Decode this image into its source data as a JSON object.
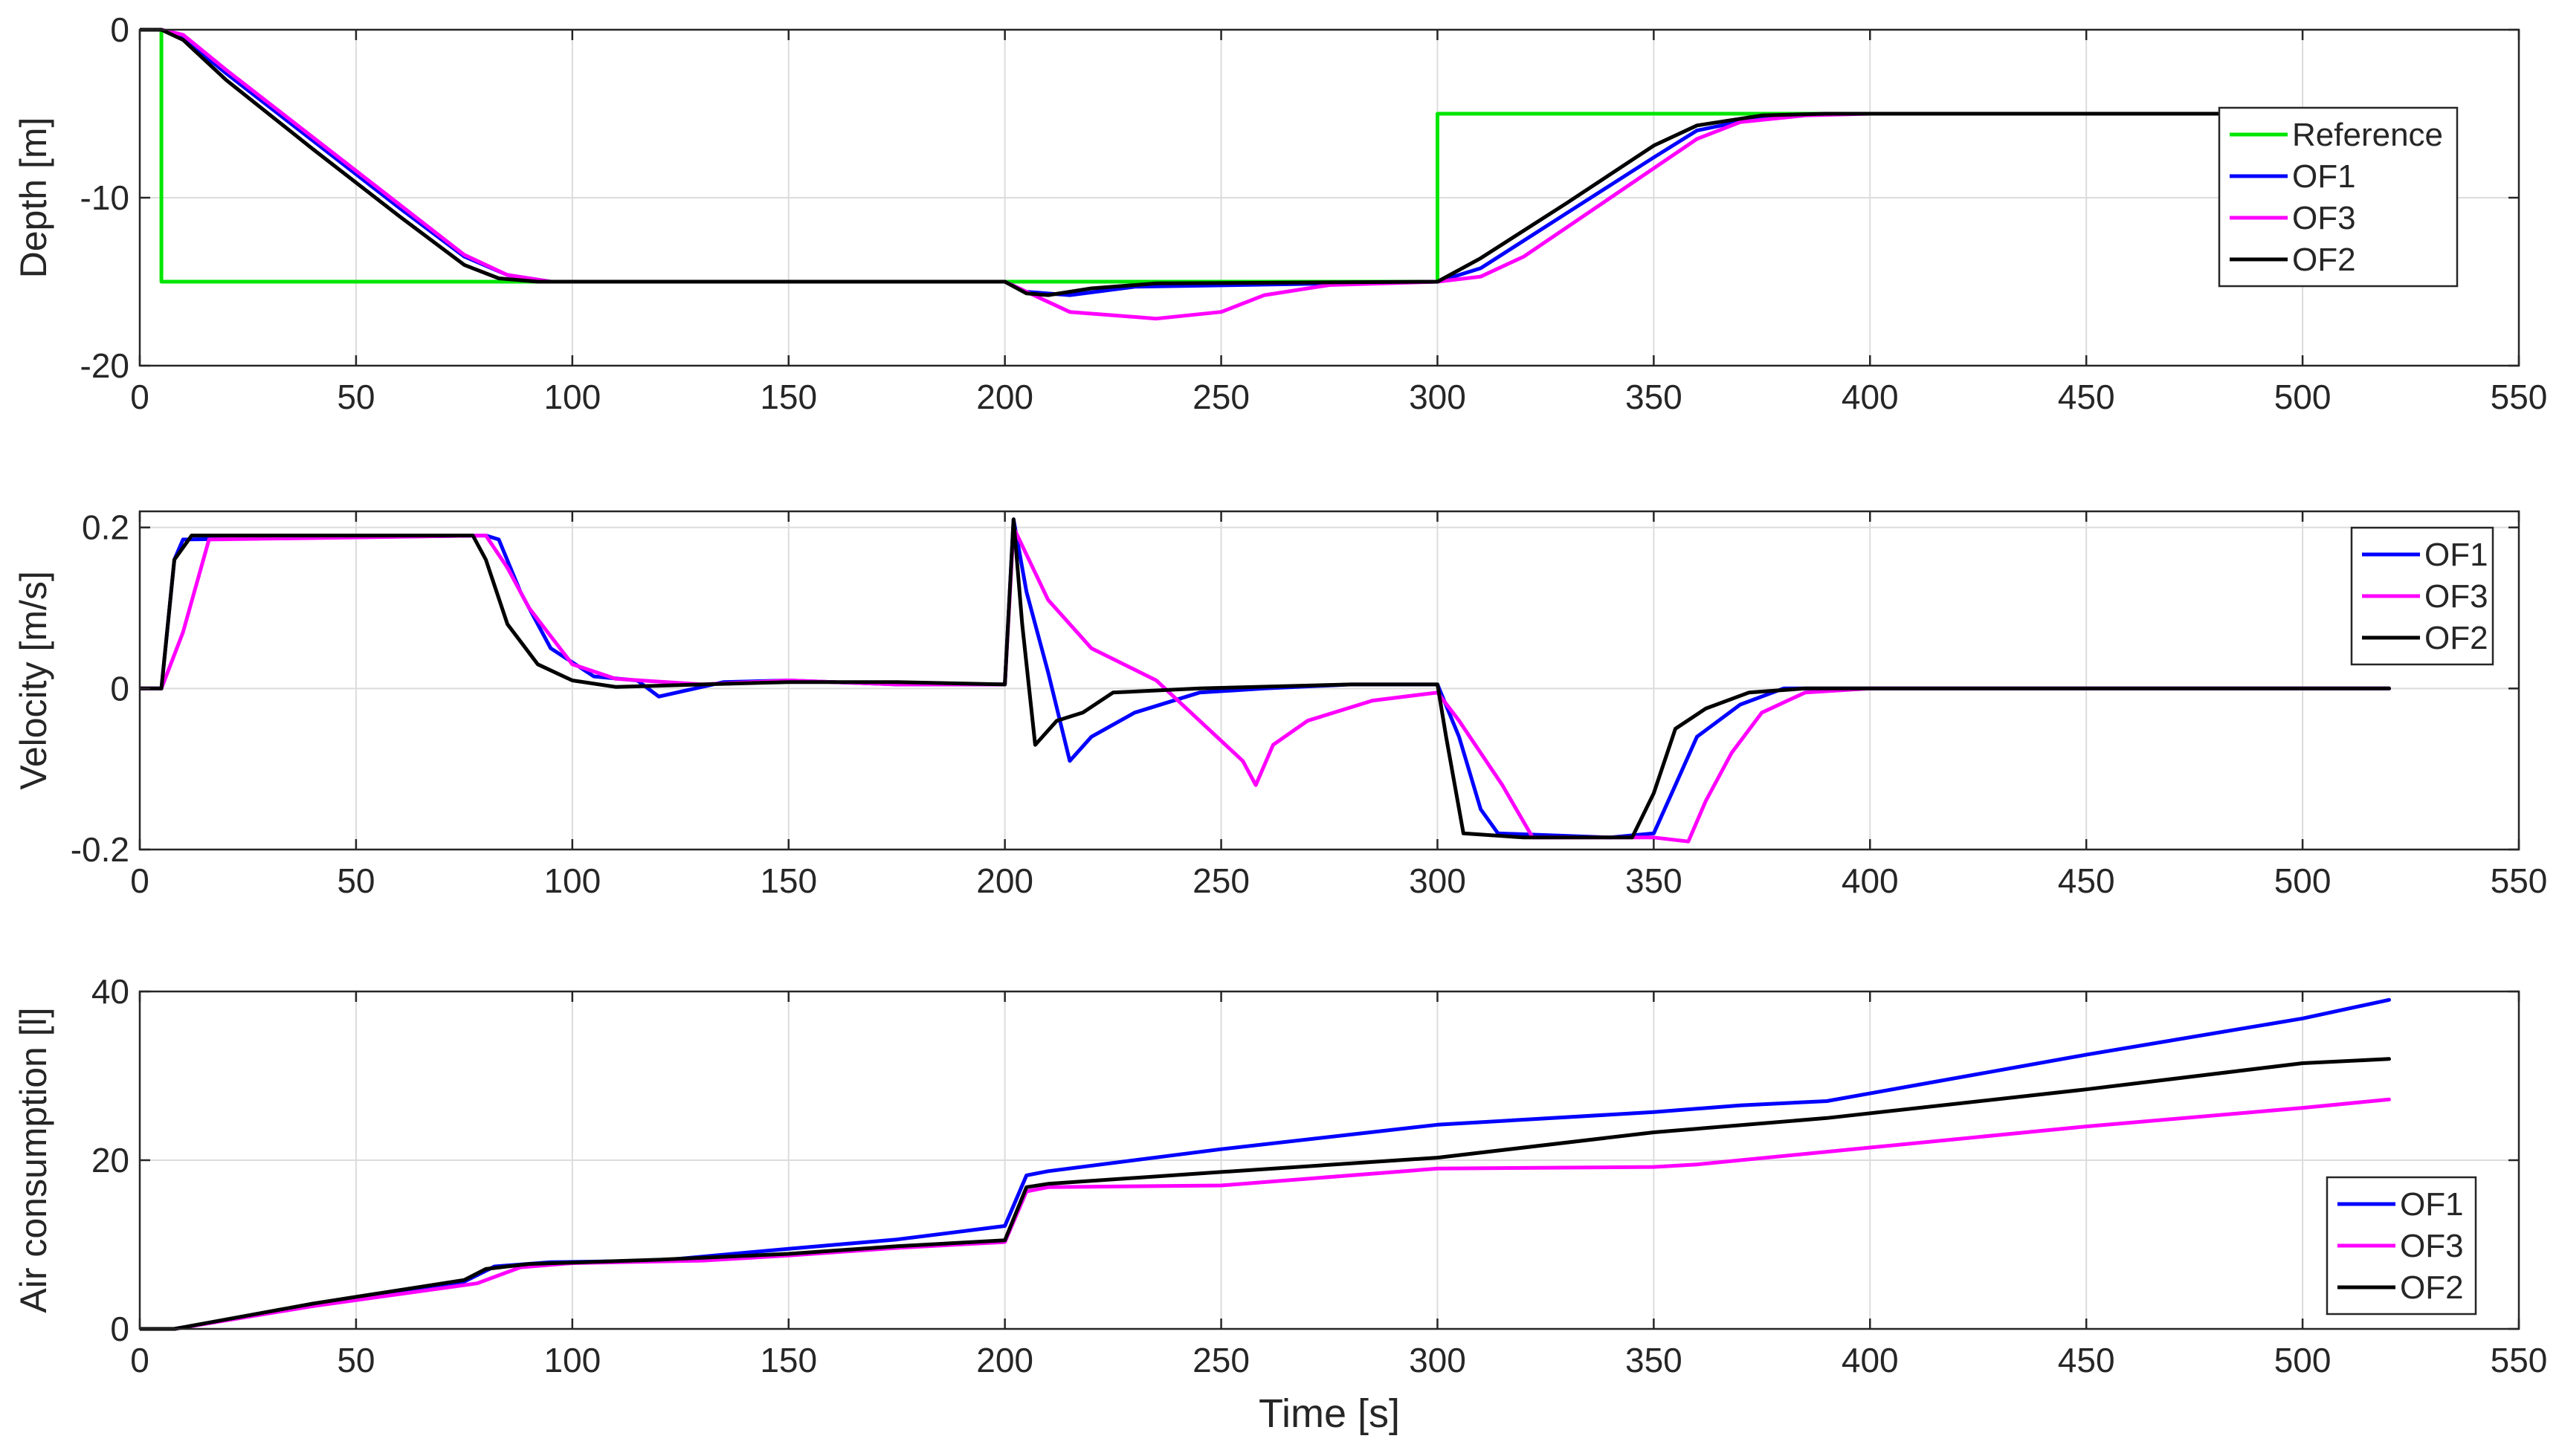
{
  "chart_data": [
    {
      "type": "line",
      "ylabel": "Depth [m]",
      "xlabel": "",
      "xlim": [
        0,
        550
      ],
      "ylim": [
        -20,
        0
      ],
      "xticks": [
        0,
        50,
        100,
        150,
        200,
        250,
        300,
        350,
        400,
        450,
        500,
        550
      ],
      "yticks": [
        0,
        -10,
        -20
      ],
      "grid": true,
      "legend_position": "right",
      "series": [
        {
          "name": "Reference",
          "color": "#00e600",
          "points": [
            [
              0,
              0
            ],
            [
              5,
              0
            ],
            [
              5,
              -15
            ],
            [
              300,
              -15
            ],
            [
              300,
              -5
            ],
            [
              520,
              -5
            ]
          ]
        },
        {
          "name": "OF1",
          "color": "#0000ff",
          "points": [
            [
              0,
              0
            ],
            [
              5,
              0
            ],
            [
              10,
              -0.5
            ],
            [
              20,
              -2.6
            ],
            [
              40,
              -6.6
            ],
            [
              60,
              -10.6
            ],
            [
              75,
              -13.5
            ],
            [
              85,
              -14.6
            ],
            [
              95,
              -15
            ],
            [
              200,
              -15
            ],
            [
              205,
              -15.6
            ],
            [
              215,
              -15.8
            ],
            [
              230,
              -15.3
            ],
            [
              300,
              -15
            ],
            [
              310,
              -14.2
            ],
            [
              330,
              -10.9
            ],
            [
              350,
              -7.6
            ],
            [
              360,
              -6
            ],
            [
              375,
              -5.2
            ],
            [
              390,
              -5
            ],
            [
              520,
              -5
            ]
          ]
        },
        {
          "name": "OF3",
          "color": "#ff00ff",
          "points": [
            [
              0,
              0
            ],
            [
              5,
              0
            ],
            [
              10,
              -0.3
            ],
            [
              20,
              -2.4
            ],
            [
              40,
              -6.4
            ],
            [
              60,
              -10.4
            ],
            [
              75,
              -13.4
            ],
            [
              85,
              -14.6
            ],
            [
              95,
              -15
            ],
            [
              200,
              -15
            ],
            [
              205,
              -15.6
            ],
            [
              215,
              -16.8
            ],
            [
              235,
              -17.2
            ],
            [
              250,
              -16.8
            ],
            [
              260,
              -15.8
            ],
            [
              275,
              -15.2
            ],
            [
              300,
              -15
            ],
            [
              310,
              -14.7
            ],
            [
              320,
              -13.5
            ],
            [
              340,
              -10
            ],
            [
              360,
              -6.5
            ],
            [
              370,
              -5.5
            ],
            [
              385,
              -5.1
            ],
            [
              400,
              -5
            ],
            [
              520,
              -5
            ]
          ]
        },
        {
          "name": "OF2",
          "color": "#000000",
          "points": [
            [
              0,
              0
            ],
            [
              5,
              0
            ],
            [
              10,
              -0.6
            ],
            [
              20,
              -3
            ],
            [
              40,
              -7.1
            ],
            [
              60,
              -11.1
            ],
            [
              75,
              -14
            ],
            [
              83,
              -14.8
            ],
            [
              92,
              -15
            ],
            [
              200,
              -15
            ],
            [
              205,
              -15.7
            ],
            [
              210,
              -15.8
            ],
            [
              220,
              -15.4
            ],
            [
              235,
              -15.1
            ],
            [
              300,
              -15
            ],
            [
              310,
              -13.6
            ],
            [
              330,
              -10.3
            ],
            [
              350,
              -6.9
            ],
            [
              360,
              -5.7
            ],
            [
              375,
              -5.1
            ],
            [
              390,
              -5
            ],
            [
              520,
              -5
            ]
          ]
        }
      ]
    },
    {
      "type": "line",
      "ylabel": "Velocity [m/s]",
      "xlabel": "",
      "xlim": [
        0,
        550
      ],
      "ylim": [
        -0.2,
        0.22
      ],
      "xticks": [
        0,
        50,
        100,
        150,
        200,
        250,
        300,
        350,
        400,
        450,
        500,
        550
      ],
      "yticks": [
        0.2,
        0,
        -0.2
      ],
      "grid": true,
      "legend_position": "right",
      "series": [
        {
          "name": "OF1",
          "color": "#0000ff",
          "points": [
            [
              0,
              0
            ],
            [
              5,
              0
            ],
            [
              8,
              0.16
            ],
            [
              10,
              0.185
            ],
            [
              80,
              0.19
            ],
            [
              83,
              0.185
            ],
            [
              88,
              0.12
            ],
            [
              95,
              0.05
            ],
            [
              105,
              0.015
            ],
            [
              115,
              0.01
            ],
            [
              120,
              -0.01
            ],
            [
              135,
              0.008
            ],
            [
              150,
              0.01
            ],
            [
              175,
              0.005
            ],
            [
              200,
              0.005
            ],
            [
              202,
              0.21
            ],
            [
              205,
              0.12
            ],
            [
              210,
              0.02
            ],
            [
              215,
              -0.09
            ],
            [
              220,
              -0.06
            ],
            [
              230,
              -0.03
            ],
            [
              245,
              -0.005
            ],
            [
              260,
              0
            ],
            [
              280,
              0.005
            ],
            [
              300,
              0.005
            ],
            [
              305,
              -0.06
            ],
            [
              310,
              -0.15
            ],
            [
              314,
              -0.18
            ],
            [
              340,
              -0.185
            ],
            [
              350,
              -0.18
            ],
            [
              355,
              -0.12
            ],
            [
              360,
              -0.06
            ],
            [
              370,
              -0.02
            ],
            [
              380,
              0
            ],
            [
              400,
              0
            ],
            [
              450,
              0
            ],
            [
              520,
              0
            ]
          ]
        },
        {
          "name": "OF3",
          "color": "#ff00ff",
          "points": [
            [
              0,
              0
            ],
            [
              5,
              0
            ],
            [
              10,
              0.07
            ],
            [
              16,
              0.185
            ],
            [
              80,
              0.19
            ],
            [
              85,
              0.15
            ],
            [
              90,
              0.1
            ],
            [
              100,
              0.03
            ],
            [
              110,
              0.012
            ],
            [
              130,
              0.005
            ],
            [
              150,
              0.01
            ],
            [
              175,
              0.005
            ],
            [
              200,
              0.005
            ],
            [
              202,
              0.2
            ],
            [
              210,
              0.11
            ],
            [
              220,
              0.05
            ],
            [
              235,
              0.01
            ],
            [
              245,
              -0.04
            ],
            [
              255,
              -0.09
            ],
            [
              258,
              -0.12
            ],
            [
              262,
              -0.07
            ],
            [
              270,
              -0.04
            ],
            [
              285,
              -0.015
            ],
            [
              300,
              -0.005
            ],
            [
              305,
              -0.04
            ],
            [
              315,
              -0.12
            ],
            [
              322,
              -0.185
            ],
            [
              350,
              -0.185
            ],
            [
              358,
              -0.19
            ],
            [
              362,
              -0.14
            ],
            [
              368,
              -0.08
            ],
            [
              375,
              -0.03
            ],
            [
              385,
              -0.005
            ],
            [
              400,
              0
            ],
            [
              520,
              0
            ]
          ]
        },
        {
          "name": "OF2",
          "color": "#000000",
          "points": [
            [
              0,
              0
            ],
            [
              5,
              0
            ],
            [
              8,
              0.16
            ],
            [
              12,
              0.19
            ],
            [
              77,
              0.19
            ],
            [
              80,
              0.16
            ],
            [
              85,
              0.08
            ],
            [
              92,
              0.03
            ],
            [
              100,
              0.01
            ],
            [
              110,
              0.002
            ],
            [
              130,
              0.005
            ],
            [
              150,
              0.008
            ],
            [
              175,
              0.008
            ],
            [
              200,
              0.005
            ],
            [
              202,
              0.21
            ],
            [
              204,
              0.08
            ],
            [
              207,
              -0.07
            ],
            [
              212,
              -0.04
            ],
            [
              218,
              -0.03
            ],
            [
              225,
              -0.005
            ],
            [
              245,
              0
            ],
            [
              280,
              0.005
            ],
            [
              300,
              0.005
            ],
            [
              302,
              -0.06
            ],
            [
              306,
              -0.18
            ],
            [
              320,
              -0.185
            ],
            [
              345,
              -0.185
            ],
            [
              350,
              -0.13
            ],
            [
              355,
              -0.05
            ],
            [
              362,
              -0.025
            ],
            [
              372,
              -0.005
            ],
            [
              385,
              0
            ],
            [
              520,
              0
            ]
          ]
        }
      ]
    },
    {
      "type": "line",
      "ylabel": "Air consumption [l]",
      "xlabel": "Time [s]",
      "xlim": [
        0,
        550
      ],
      "ylim": [
        0,
        40
      ],
      "xticks": [
        0,
        50,
        100,
        150,
        200,
        250,
        300,
        350,
        400,
        450,
        500,
        550
      ],
      "yticks": [
        0,
        20,
        40
      ],
      "grid": true,
      "legend_position": "bottom-right",
      "series": [
        {
          "name": "OF1",
          "color": "#0000ff",
          "points": [
            [
              0,
              0
            ],
            [
              8,
              0
            ],
            [
              40,
              2.8
            ],
            [
              75,
              5.6
            ],
            [
              82,
              7.4
            ],
            [
              95,
              7.9
            ],
            [
              120,
              8.1
            ],
            [
              150,
              9.5
            ],
            [
              175,
              10.6
            ],
            [
              200,
              12.2
            ],
            [
              205,
              18.2
            ],
            [
              210,
              18.7
            ],
            [
              250,
              21.3
            ],
            [
              300,
              24.2
            ],
            [
              350,
              25.7
            ],
            [
              370,
              26.5
            ],
            [
              390,
              27
            ],
            [
              450,
              32.5
            ],
            [
              500,
              36.8
            ],
            [
              520,
              39
            ]
          ]
        },
        {
          "name": "OF3",
          "color": "#ff00ff",
          "points": [
            [
              0,
              0
            ],
            [
              8,
              0
            ],
            [
              40,
              2.7
            ],
            [
              78,
              5.4
            ],
            [
              88,
              7.3
            ],
            [
              100,
              7.8
            ],
            [
              130,
              8.1
            ],
            [
              150,
              8.7
            ],
            [
              175,
              9.6
            ],
            [
              200,
              10.3
            ],
            [
              205,
              16.3
            ],
            [
              210,
              16.8
            ],
            [
              250,
              17
            ],
            [
              300,
              19
            ],
            [
              350,
              19.2
            ],
            [
              360,
              19.5
            ],
            [
              400,
              21.5
            ],
            [
              450,
              24
            ],
            [
              500,
              26.2
            ],
            [
              520,
              27.2
            ]
          ]
        },
        {
          "name": "OF2",
          "color": "#000000",
          "points": [
            [
              0,
              0
            ],
            [
              8,
              0
            ],
            [
              40,
              3
            ],
            [
              75,
              5.8
            ],
            [
              80,
              7.1
            ],
            [
              90,
              7.7
            ],
            [
              120,
              8.2
            ],
            [
              150,
              8.9
            ],
            [
              175,
              9.8
            ],
            [
              200,
              10.5
            ],
            [
              205,
              16.8
            ],
            [
              210,
              17.2
            ],
            [
              250,
              18.6
            ],
            [
              300,
              20.3
            ],
            [
              350,
              23.3
            ],
            [
              390,
              25
            ],
            [
              450,
              28.4
            ],
            [
              500,
              31.5
            ],
            [
              520,
              32
            ]
          ]
        }
      ]
    }
  ]
}
